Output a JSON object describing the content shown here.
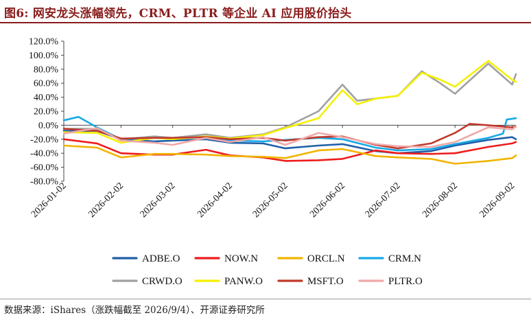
{
  "title": "图6:  网安龙头涨幅领先，CRM、PLTR 等企业 AI 应用股价抬头",
  "source": "数据来源：iShares（涨跌幅截至 2026/9/4）、开源证券研究所",
  "chart_data": {
    "type": "line",
    "x_ticks": [
      "2026-01-02",
      "2026-02-02",
      "2026-03-02",
      "2026-04-02",
      "2026-05-02",
      "2026-06-02",
      "2026-07-02",
      "2026-08-02",
      "2026-09-02"
    ],
    "x_range": [
      "2026-01-02",
      "2026-09-04"
    ],
    "y_ticks": [
      "120.0%",
      "100.0%",
      "80.0%",
      "60.0%",
      "40.0%",
      "20.0%",
      "0.0%",
      "-20.0%",
      "-40.0%",
      "-60.0%",
      "-80.0%"
    ],
    "ylim": [
      -80,
      120
    ],
    "yunit": "%",
    "grid": false,
    "legend_position": "bottom",
    "series": [
      {
        "name": "ADBE.O",
        "color": "#1f5fa8",
        "points": [
          [
            "2026-01-02",
            -8
          ],
          [
            "2026-01-20",
            -8
          ],
          [
            "2026-02-02",
            -20
          ],
          [
            "2026-02-20",
            -23
          ],
          [
            "2026-03-02",
            -22
          ],
          [
            "2026-03-20",
            -20
          ],
          [
            "2026-04-02",
            -25
          ],
          [
            "2026-04-20",
            -26
          ],
          [
            "2026-05-02",
            -33
          ],
          [
            "2026-05-20",
            -29
          ],
          [
            "2026-06-02",
            -27
          ],
          [
            "2026-06-20",
            -37
          ],
          [
            "2026-07-02",
            -40
          ],
          [
            "2026-07-20",
            -37
          ],
          [
            "2026-08-02",
            -29
          ],
          [
            "2026-08-20",
            -21
          ],
          [
            "2026-09-02",
            -17
          ],
          [
            "2026-09-04",
            -20
          ]
        ]
      },
      {
        "name": "NOW.N",
        "color": "#ee1c1c",
        "points": [
          [
            "2026-01-02",
            -20
          ],
          [
            "2026-01-20",
            -26
          ],
          [
            "2026-02-02",
            -40
          ],
          [
            "2026-02-20",
            -42
          ],
          [
            "2026-03-02",
            -42
          ],
          [
            "2026-03-20",
            -35
          ],
          [
            "2026-04-02",
            -43
          ],
          [
            "2026-04-20",
            -46
          ],
          [
            "2026-05-02",
            -51
          ],
          [
            "2026-05-20",
            -50
          ],
          [
            "2026-06-02",
            -48
          ],
          [
            "2026-06-20",
            -36
          ],
          [
            "2026-07-02",
            -40
          ],
          [
            "2026-07-20",
            -41
          ],
          [
            "2026-08-02",
            -40
          ],
          [
            "2026-08-20",
            -31
          ],
          [
            "2026-09-02",
            -26
          ],
          [
            "2026-09-04",
            -24
          ]
        ]
      },
      {
        "name": "ORCL.N",
        "color": "#f2b400",
        "points": [
          [
            "2026-01-02",
            -29
          ],
          [
            "2026-01-20",
            -32
          ],
          [
            "2026-02-02",
            -46
          ],
          [
            "2026-02-20",
            -41
          ],
          [
            "2026-03-02",
            -41
          ],
          [
            "2026-03-20",
            -42
          ],
          [
            "2026-04-02",
            -44
          ],
          [
            "2026-04-20",
            -45
          ],
          [
            "2026-05-02",
            -47
          ],
          [
            "2026-05-20",
            -36
          ],
          [
            "2026-06-02",
            -34
          ],
          [
            "2026-06-20",
            -44
          ],
          [
            "2026-07-02",
            -46
          ],
          [
            "2026-07-20",
            -48
          ],
          [
            "2026-08-02",
            -55
          ],
          [
            "2026-08-20",
            -51
          ],
          [
            "2026-09-02",
            -47
          ],
          [
            "2026-09-04",
            -43
          ]
        ]
      },
      {
        "name": "CRM.N",
        "color": "#17a9e6",
        "points": [
          [
            "2026-01-02",
            7
          ],
          [
            "2026-01-10",
            12
          ],
          [
            "2026-01-20",
            -3
          ],
          [
            "2026-02-02",
            -20
          ],
          [
            "2026-02-20",
            -18
          ],
          [
            "2026-03-02",
            -18
          ],
          [
            "2026-03-20",
            -17
          ],
          [
            "2026-04-02",
            -22
          ],
          [
            "2026-04-20",
            -23
          ],
          [
            "2026-05-02",
            -21
          ],
          [
            "2026-05-20",
            -18
          ],
          [
            "2026-06-02",
            -20
          ],
          [
            "2026-06-20",
            -32
          ],
          [
            "2026-07-02",
            -36
          ],
          [
            "2026-07-20",
            -34
          ],
          [
            "2026-08-02",
            -27
          ],
          [
            "2026-08-20",
            -18
          ],
          [
            "2026-08-28",
            -12
          ],
          [
            "2026-08-30",
            8
          ],
          [
            "2026-09-04",
            10
          ]
        ]
      },
      {
        "name": "CRWD.O",
        "color": "#a0a0a0",
        "points": [
          [
            "2026-01-02",
            -5
          ],
          [
            "2026-01-20",
            -5
          ],
          [
            "2026-02-02",
            -20
          ],
          [
            "2026-02-20",
            -16
          ],
          [
            "2026-03-02",
            -18
          ],
          [
            "2026-03-20",
            -13
          ],
          [
            "2026-04-02",
            -18
          ],
          [
            "2026-04-20",
            -13
          ],
          [
            "2026-05-02",
            -3
          ],
          [
            "2026-05-20",
            20
          ],
          [
            "2026-06-02",
            58
          ],
          [
            "2026-06-10",
            35
          ],
          [
            "2026-06-20",
            38
          ],
          [
            "2026-07-02",
            42
          ],
          [
            "2026-07-15",
            77
          ],
          [
            "2026-07-25",
            60
          ],
          [
            "2026-08-02",
            45
          ],
          [
            "2026-08-20",
            88
          ],
          [
            "2026-09-02",
            58
          ],
          [
            "2026-09-04",
            73
          ]
        ]
      },
      {
        "name": "PANW.O",
        "color": "#f5f000",
        "points": [
          [
            "2026-01-02",
            -10
          ],
          [
            "2026-01-20",
            -11
          ],
          [
            "2026-02-02",
            -25
          ],
          [
            "2026-02-20",
            -18
          ],
          [
            "2026-03-02",
            -20
          ],
          [
            "2026-03-20",
            -16
          ],
          [
            "2026-04-02",
            -19
          ],
          [
            "2026-04-20",
            -14
          ],
          [
            "2026-05-02",
            -4
          ],
          [
            "2026-05-20",
            10
          ],
          [
            "2026-06-02",
            50
          ],
          [
            "2026-06-10",
            30
          ],
          [
            "2026-06-20",
            38
          ],
          [
            "2026-07-02",
            42
          ],
          [
            "2026-07-15",
            75
          ],
          [
            "2026-07-25",
            65
          ],
          [
            "2026-08-02",
            55
          ],
          [
            "2026-08-20",
            92
          ],
          [
            "2026-09-02",
            65
          ],
          [
            "2026-09-04",
            62
          ]
        ]
      },
      {
        "name": "MSFT.O",
        "color": "#c0392b",
        "points": [
          [
            "2026-01-02",
            -5
          ],
          [
            "2026-01-20",
            -8
          ],
          [
            "2026-02-02",
            -19
          ],
          [
            "2026-02-20",
            -18
          ],
          [
            "2026-03-02",
            -18
          ],
          [
            "2026-03-20",
            -17
          ],
          [
            "2026-04-02",
            -20
          ],
          [
            "2026-04-20",
            -18
          ],
          [
            "2026-05-02",
            -22
          ],
          [
            "2026-05-20",
            -17
          ],
          [
            "2026-06-02",
            -16
          ],
          [
            "2026-06-20",
            -28
          ],
          [
            "2026-07-02",
            -33
          ],
          [
            "2026-07-20",
            -26
          ],
          [
            "2026-08-02",
            -11
          ],
          [
            "2026-08-10",
            2
          ],
          [
            "2026-08-20",
            0
          ],
          [
            "2026-09-02",
            -3
          ],
          [
            "2026-09-04",
            -2
          ]
        ]
      },
      {
        "name": "PLTR.O",
        "color": "#f0a8a8",
        "points": [
          [
            "2026-01-02",
            -12
          ],
          [
            "2026-01-20",
            -4
          ],
          [
            "2026-02-02",
            -22
          ],
          [
            "2026-02-20",
            -25
          ],
          [
            "2026-03-02",
            -28
          ],
          [
            "2026-03-20",
            -18
          ],
          [
            "2026-04-02",
            -24
          ],
          [
            "2026-04-20",
            -17
          ],
          [
            "2026-05-02",
            -28
          ],
          [
            "2026-05-20",
            -11
          ],
          [
            "2026-06-02",
            -17
          ],
          [
            "2026-06-20",
            -27
          ],
          [
            "2026-07-02",
            -30
          ],
          [
            "2026-07-20",
            -31
          ],
          [
            "2026-08-02",
            -24
          ],
          [
            "2026-08-20",
            -3
          ],
          [
            "2026-09-02",
            -6
          ],
          [
            "2026-09-04",
            -2
          ]
        ]
      }
    ]
  }
}
